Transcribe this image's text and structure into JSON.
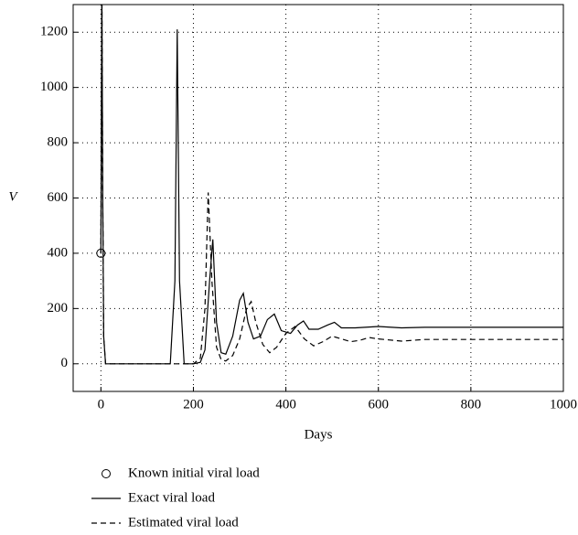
{
  "chart_data": {
    "type": "line",
    "xlabel": "Days",
    "ylabel": "V",
    "xlim": [
      -60,
      1000
    ],
    "xticks": [
      0,
      200,
      400,
      600,
      800,
      1000
    ],
    "ylim": [
      -100,
      1300
    ],
    "yticks": [
      0,
      200,
      400,
      600,
      800,
      1000,
      1200
    ],
    "grid": true,
    "series": [
      {
        "name": "Known initial viral load",
        "color": "#000000",
        "style": "marker",
        "x": [
          0
        ],
        "values": [
          400
        ]
      },
      {
        "name": "Exact viral load",
        "color": "#000000",
        "style": "solid",
        "x": [
          0,
          2,
          4,
          6,
          10,
          20,
          150,
          160,
          165,
          170,
          180,
          200,
          215,
          225,
          235,
          242,
          250,
          260,
          270,
          285,
          300,
          308,
          318,
          330,
          345,
          360,
          375,
          390,
          410,
          425,
          438,
          450,
          470,
          490,
          505,
          520,
          550,
          600,
          650,
          700,
          800,
          900,
          1000
        ],
        "values": [
          400,
          1400,
          600,
          100,
          0,
          0,
          0,
          300,
          1210,
          300,
          0,
          0,
          5,
          50,
          300,
          450,
          150,
          40,
          35,
          100,
          230,
          255,
          150,
          90,
          100,
          160,
          180,
          120,
          110,
          140,
          155,
          125,
          125,
          140,
          150,
          130,
          130,
          135,
          130,
          132,
          132,
          132,
          132
        ]
      },
      {
        "name": "Estimated viral load",
        "color": "#000000",
        "style": "dashed",
        "x": [
          0,
          2,
          4,
          6,
          10,
          20,
          200,
          215,
          225,
          232,
          240,
          250,
          260,
          270,
          285,
          300,
          315,
          325,
          335,
          350,
          365,
          380,
          400,
          420,
          440,
          460,
          480,
          500,
          520,
          540,
          560,
          580,
          600,
          650,
          700,
          800,
          900,
          1000
        ],
        "values": [
          400,
          1400,
          600,
          100,
          0,
          0,
          0,
          20,
          200,
          620,
          300,
          60,
          15,
          10,
          30,
          90,
          200,
          225,
          150,
          70,
          40,
          60,
          110,
          135,
          90,
          65,
          80,
          100,
          90,
          80,
          85,
          95,
          90,
          82,
          88,
          88,
          88,
          88
        ]
      }
    ]
  }
}
